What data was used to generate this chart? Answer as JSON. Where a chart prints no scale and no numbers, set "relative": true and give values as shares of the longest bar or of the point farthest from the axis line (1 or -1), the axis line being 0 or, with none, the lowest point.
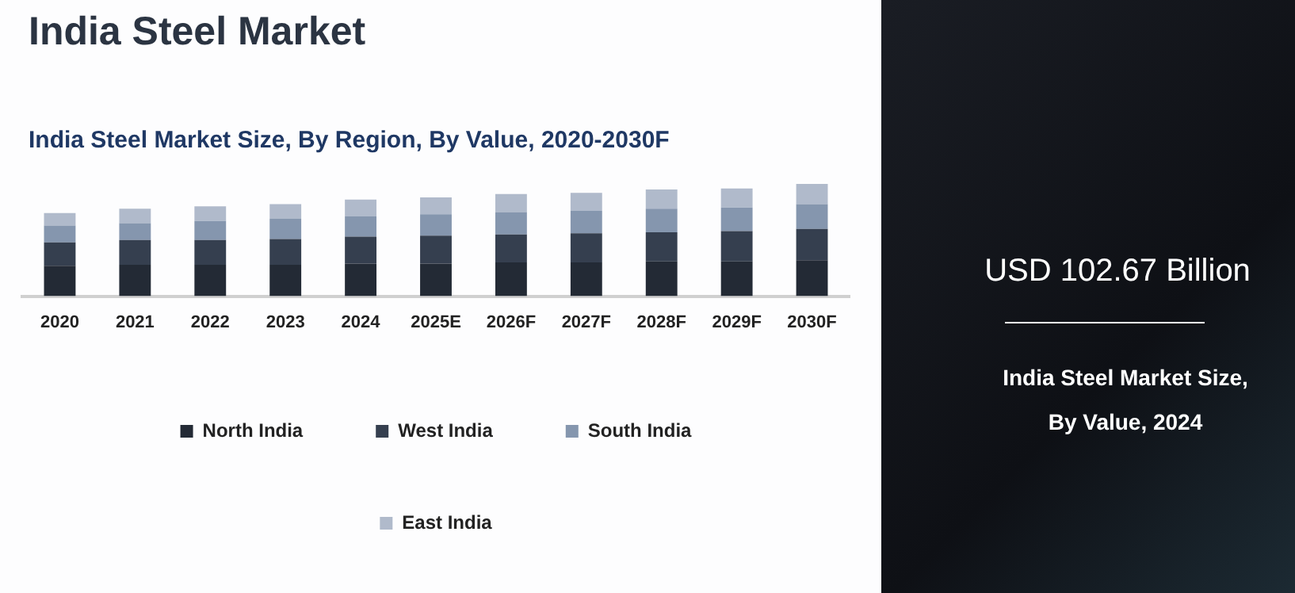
{
  "chart_data": {
    "type": "bar",
    "title": "India Steel Market",
    "subtitle": "India Steel Market Size, By Region, By Value, 2020-2030F",
    "relative": true,
    "stacked": true,
    "legend": "bottom",
    "grid": false,
    "categories": [
      "2020",
      "2021",
      "2022",
      "2023",
      "2024",
      "2025E",
      "2026F",
      "2027F",
      "2028F",
      "2029F",
      "2030F"
    ],
    "series": [
      {
        "name": "North India",
        "color": "#232a35",
        "values": [
          0.27,
          0.28,
          0.28,
          0.28,
          0.29,
          0.29,
          0.3,
          0.3,
          0.31,
          0.31,
          0.32
        ]
      },
      {
        "name": "West India",
        "color": "#353f4f",
        "values": [
          0.21,
          0.22,
          0.22,
          0.23,
          0.24,
          0.25,
          0.25,
          0.26,
          0.26,
          0.27,
          0.28
        ]
      },
      {
        "name": "South India",
        "color": "#8596ae",
        "values": [
          0.15,
          0.15,
          0.17,
          0.18,
          0.18,
          0.19,
          0.2,
          0.2,
          0.21,
          0.21,
          0.22
        ]
      },
      {
        "name": "East India",
        "color": "#b0bacb",
        "values": [
          0.11,
          0.13,
          0.13,
          0.13,
          0.15,
          0.15,
          0.16,
          0.16,
          0.17,
          0.17,
          0.18
        ]
      }
    ],
    "annotations": [
      "USD 102.67 Billion",
      "India Steel Market Size, By Value, 2024"
    ]
  }
}
